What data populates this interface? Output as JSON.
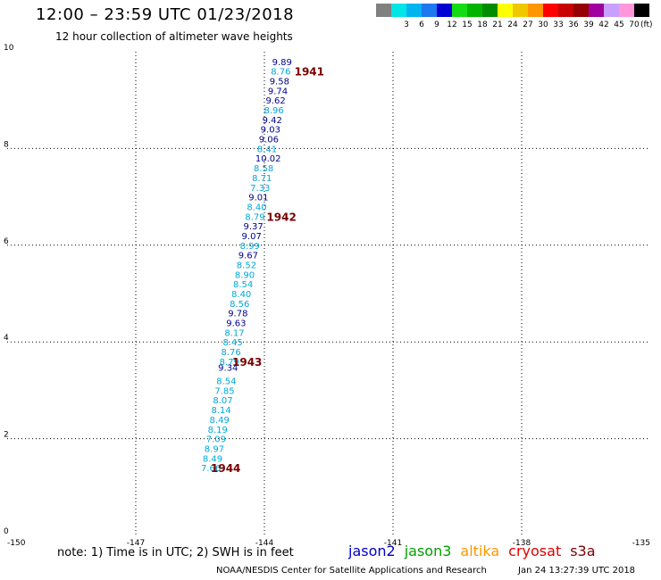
{
  "header": {
    "title": "12:00 – 23:59 UTC 01/23/2018",
    "subtitle": "12 hour collection of altimeter wave heights"
  },
  "colorbar": {
    "unit": "(ft)",
    "bins": [
      {
        "label": "",
        "color": "#808080"
      },
      {
        "label": "3",
        "color": "#00e5e5"
      },
      {
        "label": "6",
        "color": "#00b4f0"
      },
      {
        "label": "9",
        "color": "#1e78f0"
      },
      {
        "label": "12",
        "color": "#0000d2"
      },
      {
        "label": "15",
        "color": "#14dc14"
      },
      {
        "label": "18",
        "color": "#00b400"
      },
      {
        "label": "21",
        "color": "#008c00"
      },
      {
        "label": "24",
        "color": "#ffff00"
      },
      {
        "label": "27",
        "color": "#f0c800"
      },
      {
        "label": "30",
        "color": "#ff9600"
      },
      {
        "label": "33",
        "color": "#ff0000"
      },
      {
        "label": "36",
        "color": "#c80000"
      },
      {
        "label": "39",
        "color": "#960000"
      },
      {
        "label": "42",
        "color": "#a000a0"
      },
      {
        "label": "45",
        "color": "#c8a0ff"
      },
      {
        "label": "70",
        "color": "#ff96dc"
      },
      {
        "label": "",
        "color": "#000000"
      }
    ]
  },
  "chart_data": {
    "type": "scatter",
    "xlim": [
      -150,
      -135
    ],
    "ylim": [
      0,
      10
    ],
    "x_ticks": [
      "-150",
      "-147",
      "-144",
      "-141",
      "-138",
      "-135"
    ],
    "y_ticks": [
      "0",
      "2",
      "4",
      "6",
      "8",
      "10"
    ],
    "grid": true,
    "colors": {
      "light": "#00a8d8",
      "dark": "#00008c",
      "time": "#780000"
    },
    "points": [
      {
        "x": -143.82,
        "y": 9.8,
        "label": "9.89",
        "shade": "dark"
      },
      {
        "x": -143.85,
        "y": 9.6,
        "label": "8.76",
        "shade": "light"
      },
      {
        "x": -143.88,
        "y": 9.4,
        "label": "9.58",
        "shade": "dark"
      },
      {
        "x": -143.92,
        "y": 9.2,
        "label": "9.74",
        "shade": "dark"
      },
      {
        "x": -143.97,
        "y": 9.0,
        "label": "9.62",
        "shade": "dark"
      },
      {
        "x": -144.01,
        "y": 8.8,
        "label": "8.96",
        "shade": "light"
      },
      {
        "x": -144.05,
        "y": 8.6,
        "label": "9.42",
        "shade": "dark"
      },
      {
        "x": -144.09,
        "y": 8.4,
        "label": "9.03",
        "shade": "dark"
      },
      {
        "x": -144.13,
        "y": 8.2,
        "label": "9.06",
        "shade": "dark"
      },
      {
        "x": -144.17,
        "y": 8.0,
        "label": "8.41",
        "shade": "light"
      },
      {
        "x": -144.21,
        "y": 7.8,
        "label": "10.02",
        "shade": "dark"
      },
      {
        "x": -144.25,
        "y": 7.6,
        "label": "8.58",
        "shade": "light"
      },
      {
        "x": -144.29,
        "y": 7.4,
        "label": "8.71",
        "shade": "light"
      },
      {
        "x": -144.33,
        "y": 7.2,
        "label": "7.33",
        "shade": "light"
      },
      {
        "x": -144.37,
        "y": 7.0,
        "label": "9.01",
        "shade": "dark"
      },
      {
        "x": -144.41,
        "y": 6.8,
        "label": "8.40",
        "shade": "light"
      },
      {
        "x": -144.45,
        "y": 6.6,
        "label": "8.79",
        "shade": "light"
      },
      {
        "x": -144.49,
        "y": 6.4,
        "label": "9.37",
        "shade": "dark"
      },
      {
        "x": -144.53,
        "y": 6.2,
        "label": "9.07",
        "shade": "dark"
      },
      {
        "x": -144.57,
        "y": 6.0,
        "label": "8.99",
        "shade": "light"
      },
      {
        "x": -144.61,
        "y": 5.8,
        "label": "9.67",
        "shade": "dark"
      },
      {
        "x": -144.65,
        "y": 5.6,
        "label": "8.52",
        "shade": "light"
      },
      {
        "x": -144.69,
        "y": 5.4,
        "label": "8.90",
        "shade": "light"
      },
      {
        "x": -144.73,
        "y": 5.2,
        "label": "8.54",
        "shade": "light"
      },
      {
        "x": -144.77,
        "y": 5.0,
        "label": "8.40",
        "shade": "light"
      },
      {
        "x": -144.81,
        "y": 4.8,
        "label": "8.56",
        "shade": "light"
      },
      {
        "x": -144.85,
        "y": 4.6,
        "label": "9.78",
        "shade": "dark"
      },
      {
        "x": -144.89,
        "y": 4.4,
        "label": "9.63",
        "shade": "dark"
      },
      {
        "x": -144.93,
        "y": 4.2,
        "label": "8.17",
        "shade": "light"
      },
      {
        "x": -144.97,
        "y": 4.0,
        "label": "8.45",
        "shade": "light"
      },
      {
        "x": -145.01,
        "y": 3.8,
        "label": "8.76",
        "shade": "light"
      },
      {
        "x": -145.05,
        "y": 3.6,
        "label": "8.79",
        "shade": "light"
      },
      {
        "x": -145.08,
        "y": 3.48,
        "label": "9.34",
        "shade": "dark"
      },
      {
        "x": -145.12,
        "y": 3.2,
        "label": "8.54",
        "shade": "light"
      },
      {
        "x": -145.16,
        "y": 3.0,
        "label": "7.85",
        "shade": "light"
      },
      {
        "x": -145.2,
        "y": 2.8,
        "label": "8.07",
        "shade": "light"
      },
      {
        "x": -145.24,
        "y": 2.6,
        "label": "8.14",
        "shade": "light"
      },
      {
        "x": -145.28,
        "y": 2.4,
        "label": "8.49",
        "shade": "light"
      },
      {
        "x": -145.32,
        "y": 2.2,
        "label": "8.19",
        "shade": "light"
      },
      {
        "x": -145.36,
        "y": 2.0,
        "label": "7.09",
        "shade": "light"
      },
      {
        "x": -145.4,
        "y": 1.8,
        "label": "8.97",
        "shade": "light"
      },
      {
        "x": -145.44,
        "y": 1.6,
        "label": "8.49",
        "shade": "light"
      },
      {
        "x": -145.48,
        "y": 1.4,
        "label": "7.66",
        "shade": "light"
      }
    ],
    "time_labels": [
      {
        "x": -143.3,
        "y": 9.6,
        "label": "1941"
      },
      {
        "x": -143.95,
        "y": 6.6,
        "label": "1942"
      },
      {
        "x": -144.75,
        "y": 3.6,
        "label": "1943"
      },
      {
        "x": -145.25,
        "y": 1.4,
        "label": "1944"
      }
    ]
  },
  "footer": {
    "note": "note:  1) Time is in UTC;  2) SWH is in feet",
    "satellites": [
      {
        "name": "jason2",
        "color": "#0000d2"
      },
      {
        "name": "jason3",
        "color": "#00a000"
      },
      {
        "name": "altika",
        "color": "#ff9600"
      },
      {
        "name": "cryosat",
        "color": "#e00000"
      },
      {
        "name": "s3a",
        "color": "#780000"
      }
    ],
    "credit": "NOAA/NESDIS Center for Satellite Applications and Research",
    "timestamp": "Jan 24 13:27:39 UTC 2018"
  }
}
